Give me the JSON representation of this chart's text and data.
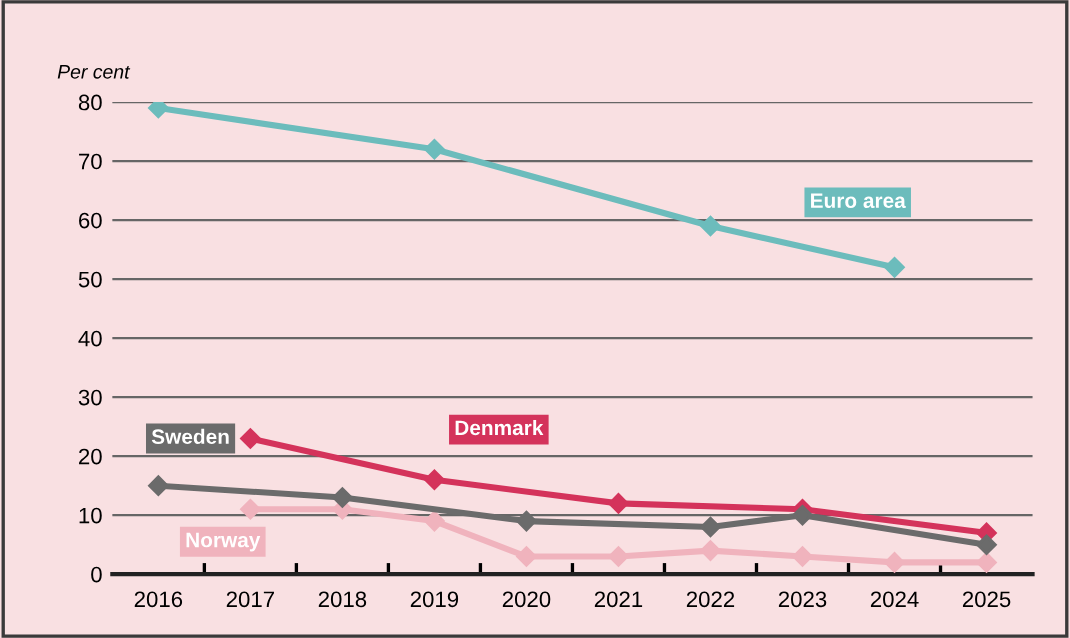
{
  "chart_data": {
    "type": "line",
    "ylabel": "Per cent",
    "categories": [
      "2016",
      "2017",
      "2018",
      "2019",
      "2020",
      "2021",
      "2022",
      "2023",
      "2024",
      "2025"
    ],
    "series": [
      {
        "name": "Euro area",
        "color": "#6cbcbc",
        "values": [
          79,
          null,
          null,
          72,
          null,
          null,
          59,
          null,
          52,
          null
        ]
      },
      {
        "name": "Sweden",
        "color": "#6b6b6b",
        "values": [
          15,
          null,
          13,
          null,
          9,
          null,
          8,
          10,
          null,
          5
        ]
      },
      {
        "name": "Denmark",
        "color": "#d4335b",
        "values": [
          null,
          23,
          null,
          16,
          null,
          12,
          null,
          11,
          null,
          7
        ]
      },
      {
        "name": "Norway",
        "color": "#f0b3bd",
        "values": [
          null,
          11,
          11,
          9,
          3,
          3,
          4,
          3,
          2,
          2
        ]
      }
    ],
    "ylim": [
      0,
      80
    ],
    "yticks": [
      0,
      10,
      20,
      30,
      40,
      50,
      60,
      70,
      80
    ],
    "grid": "y",
    "marker": "diamond",
    "line_style": "solid",
    "legend": false
  }
}
